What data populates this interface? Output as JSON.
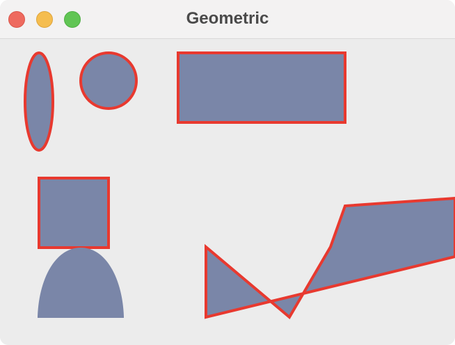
{
  "window": {
    "title": "Geometric",
    "controls": {
      "close": "close-button",
      "minimize": "minimize-button",
      "zoom": "zoom-button"
    }
  },
  "colors": {
    "shape_fill": "#7a86a8",
    "shape_stroke": "#e8392f",
    "canvas_background": "#ececec"
  }
}
